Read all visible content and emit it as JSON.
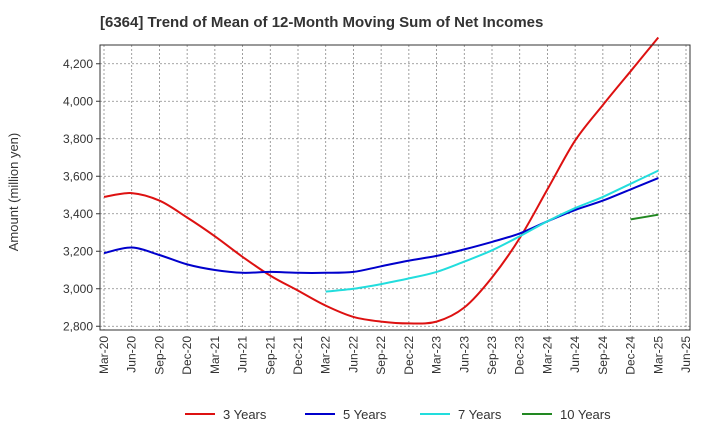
{
  "chart_data": {
    "type": "line",
    "title": "[6364]  Trend of Mean of 12-Month Moving Sum of Net Incomes",
    "ylabel": "Amount (million yen)",
    "xlabel": "",
    "x": [
      "Mar-20",
      "Jun-20",
      "Sep-20",
      "Dec-20",
      "Mar-21",
      "Jun-21",
      "Sep-21",
      "Dec-21",
      "Mar-22",
      "Jun-22",
      "Sep-22",
      "Dec-22",
      "Mar-23",
      "Jun-23",
      "Sep-23",
      "Dec-23",
      "Mar-24",
      "Jun-24",
      "Sep-24",
      "Dec-24",
      "Mar-25",
      "Jun-25"
    ],
    "ylim": [
      2780,
      4300
    ],
    "yticks": [
      2800,
      3000,
      3200,
      3400,
      3600,
      3800,
      4000,
      4200
    ],
    "ytick_labels": [
      "2,800",
      "3,000",
      "3,200",
      "3,400",
      "3,600",
      "3,800",
      "4,000",
      "4,200"
    ],
    "grid": true,
    "legend_position": "bottom",
    "series": [
      {
        "name": "3 Years",
        "color": "#dd1111",
        "values": [
          3490,
          3510,
          3470,
          3380,
          3280,
          3170,
          3070,
          2990,
          2910,
          2850,
          2825,
          2815,
          2825,
          2900,
          3060,
          3270,
          3530,
          3790,
          3980,
          4160,
          4340,
          null
        ]
      },
      {
        "name": "5 Years",
        "color": "#0000cc",
        "values": [
          3190,
          3220,
          3180,
          3130,
          3100,
          3085,
          3090,
          3085,
          3085,
          3090,
          3120,
          3150,
          3175,
          3210,
          3250,
          3295,
          3360,
          3420,
          3470,
          3530,
          3590,
          null
        ]
      },
      {
        "name": "7 Years",
        "color": "#22dddd",
        "values": [
          null,
          null,
          null,
          null,
          null,
          null,
          null,
          null,
          2985,
          3000,
          3025,
          3055,
          3090,
          3145,
          3205,
          3280,
          3360,
          3430,
          3490,
          3560,
          3630,
          null
        ]
      },
      {
        "name": "10 Years",
        "color": "#228822",
        "values": [
          null,
          null,
          null,
          null,
          null,
          null,
          null,
          null,
          null,
          null,
          null,
          null,
          null,
          null,
          null,
          null,
          null,
          null,
          null,
          3370,
          3395,
          null
        ]
      }
    ]
  }
}
